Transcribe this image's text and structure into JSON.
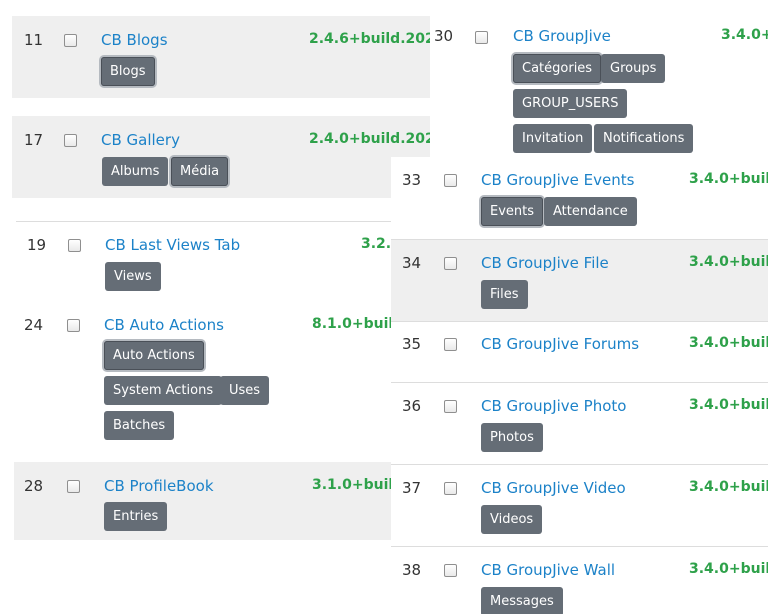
{
  "left_panel": {
    "rows": [
      {
        "id": "11",
        "title": "CB Blogs",
        "version": "2.4.6+build.202",
        "tags": [
          "Blogs"
        ]
      },
      {
        "id": "17",
        "title": "CB Gallery",
        "version": "2.4.0+build.202",
        "tags": [
          "Albums",
          "Média"
        ]
      },
      {
        "id": "19",
        "title": "CB Last Views Tab",
        "version": "3.2.",
        "tags": [
          "Views"
        ]
      },
      {
        "id": "24",
        "title": "CB Auto Actions",
        "version": "8.1.0+buil",
        "tags": [
          "Auto Actions",
          "System Actions",
          "Uses",
          "Batches"
        ]
      },
      {
        "id": "28",
        "title": "CB ProfileBook",
        "version": "3.1.0+buil",
        "tags": [
          "Entries"
        ]
      }
    ]
  },
  "right_top": {
    "id": "30",
    "title": "CB GroupJive",
    "version": "3.4.0+",
    "tags": [
      "Catégories",
      "Groups",
      "GROUP_USERS",
      "Invitation",
      "Notifications"
    ]
  },
  "right_panel": {
    "rows": [
      {
        "id": "33",
        "title": "CB GroupJive Events",
        "version": "3.4.0+buil",
        "tags": [
          "Events",
          "Attendance"
        ]
      },
      {
        "id": "34",
        "title": "CB GroupJive File",
        "version": "3.4.0+buil",
        "tags": [
          "Files"
        ]
      },
      {
        "id": "35",
        "title": "CB GroupJive Forums",
        "version": "3.4.0+buil",
        "tags": []
      },
      {
        "id": "36",
        "title": "CB GroupJive Photo",
        "version": "3.4.0+buil",
        "tags": [
          "Photos"
        ]
      },
      {
        "id": "37",
        "title": "CB GroupJive Video",
        "version": "3.4.0+buil",
        "tags": [
          "Videos"
        ]
      },
      {
        "id": "38",
        "title": "CB GroupJive Wall",
        "version": "3.4.0+buil",
        "tags": [
          "Messages"
        ]
      }
    ]
  },
  "colors": {
    "link": "#1c82c8",
    "version": "#2ea14a",
    "badge": "#656d76",
    "row_alt": "#efefef"
  }
}
